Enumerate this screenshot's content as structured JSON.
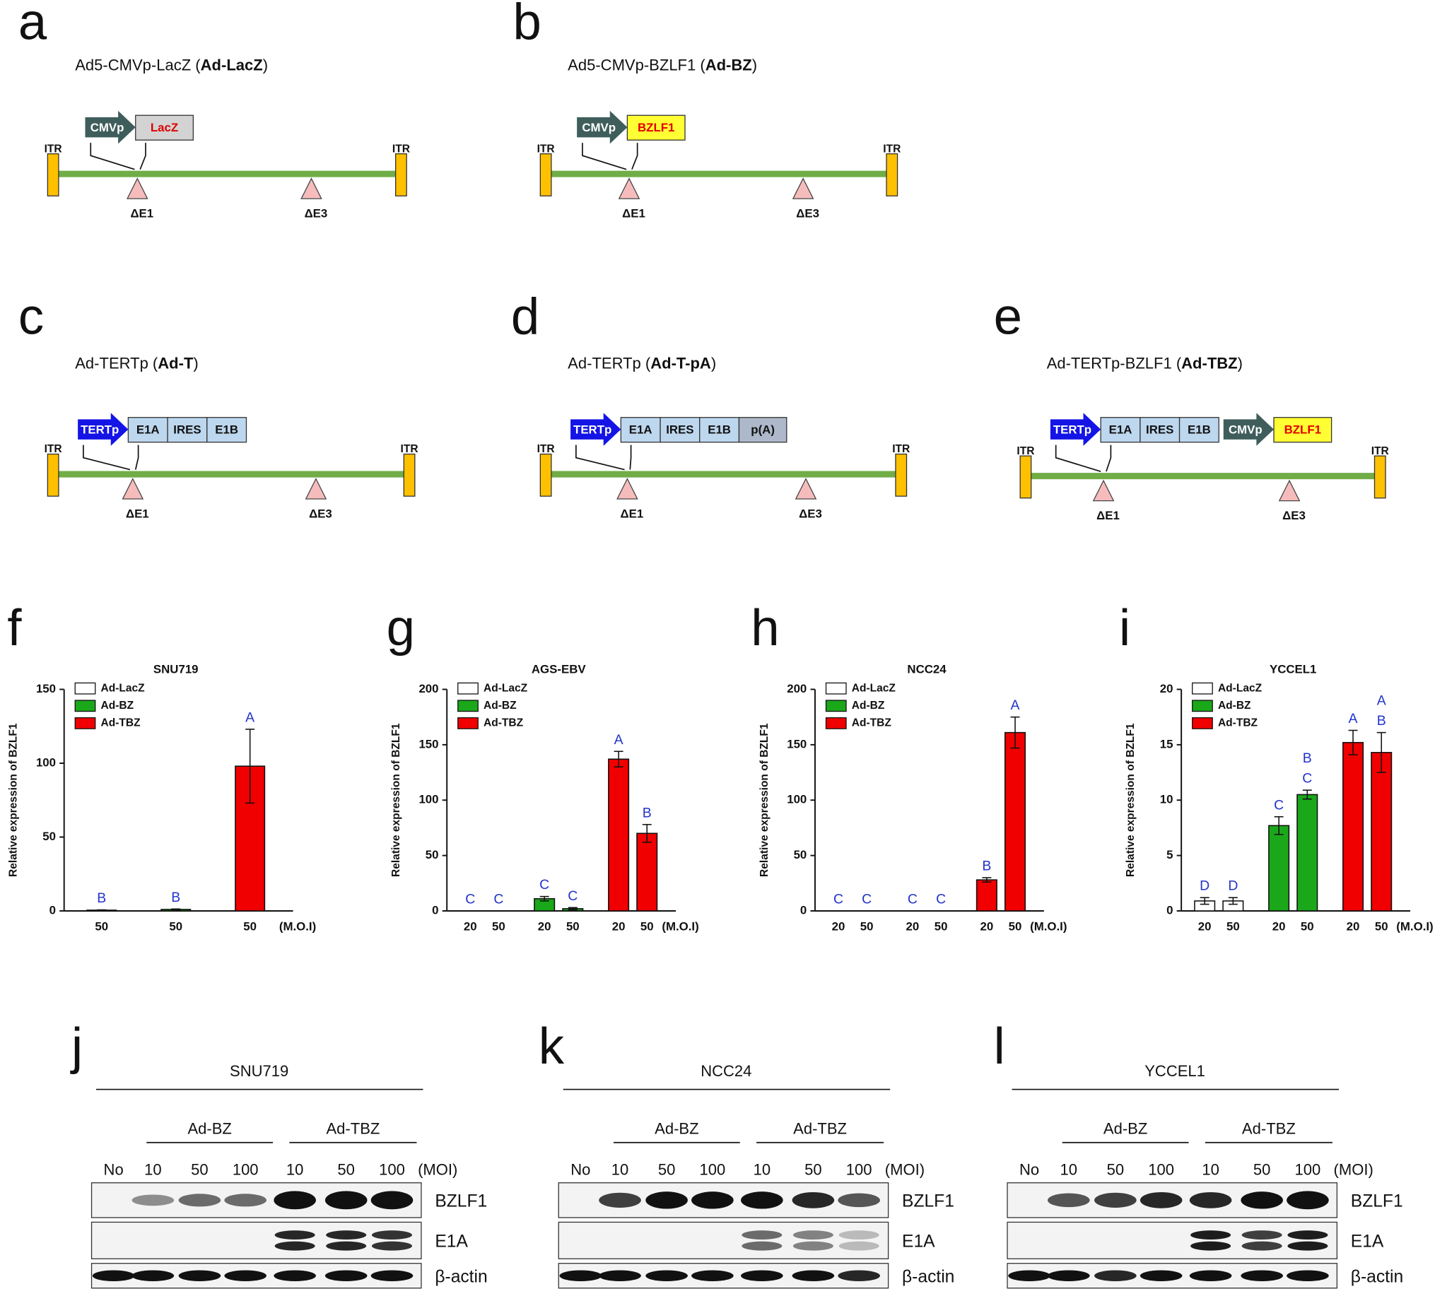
{
  "constructs": [
    {
      "letter": "a",
      "title": [
        "Ad5-CMVp-LacZ (",
        "Ad-LacZ",
        ")"
      ],
      "itr": [
        "ITR",
        "ITR"
      ],
      "cassette": [
        {
          "label": "CMVp",
          "kind": "promoter",
          "color": "#3f5e5b"
        },
        {
          "label": "LacZ",
          "kind": "gene",
          "color": "#d3d3d3"
        }
      ],
      "deletions": [
        "ΔE1",
        "ΔE3"
      ]
    },
    {
      "letter": "b",
      "title": [
        "Ad5-CMVp-BZLF1 (",
        "Ad-BZ",
        ")"
      ],
      "itr": [
        "ITR",
        "ITR"
      ],
      "cassette": [
        {
          "label": "CMVp",
          "kind": "promoter",
          "color": "#3f5e5b"
        },
        {
          "label": "BZLF1",
          "kind": "gene",
          "color": "#ffff33"
        }
      ],
      "deletions": [
        "ΔE1",
        "ΔE3"
      ]
    },
    {
      "letter": "c",
      "title": [
        "Ad-TERTp (",
        "Ad-T",
        ")"
      ],
      "itr": [
        "ITR",
        "ITR"
      ],
      "cassette": [
        {
          "label": "TERTp",
          "kind": "promoter",
          "color": "#1414e6"
        },
        {
          "label": "E1A",
          "kind": "segment",
          "color": "#bdd7ee"
        },
        {
          "label": "IRES",
          "kind": "segment",
          "color": "#bdd7ee"
        },
        {
          "label": "E1B",
          "kind": "segment",
          "color": "#bdd7ee"
        }
      ],
      "deletions": [
        "ΔE1",
        "ΔE3"
      ]
    },
    {
      "letter": "d",
      "title": [
        "Ad-TERTp (",
        "Ad-T-pA",
        ")"
      ],
      "itr": [
        "ITR",
        "ITR"
      ],
      "cassette": [
        {
          "label": "TERTp",
          "kind": "promoter",
          "color": "#1414e6"
        },
        {
          "label": "E1A",
          "kind": "segment",
          "color": "#bdd7ee"
        },
        {
          "label": "IRES",
          "kind": "segment",
          "color": "#bdd7ee"
        },
        {
          "label": "E1B",
          "kind": "segment",
          "color": "#bdd7ee"
        },
        {
          "label": "p(A)",
          "kind": "tail",
          "color": "#adb9ca"
        }
      ],
      "deletions": [
        "ΔE1",
        "ΔE3"
      ]
    },
    {
      "letter": "e",
      "title": [
        "Ad-TERTp-BZLF1 (",
        "Ad-TBZ",
        ")"
      ],
      "itr": [
        "ITR",
        "ITR"
      ],
      "cassette": [
        {
          "label": "TERTp",
          "kind": "promoter",
          "color": "#1414e6"
        },
        {
          "label": "E1A",
          "kind": "segment",
          "color": "#bdd7ee"
        },
        {
          "label": "IRES",
          "kind": "segment",
          "color": "#bdd7ee"
        },
        {
          "label": "E1B",
          "kind": "segment",
          "color": "#bdd7ee"
        },
        {
          "label": "CMVp",
          "kind": "promoter",
          "color": "#3f5e5b"
        },
        {
          "label": "BZLF1",
          "kind": "gene",
          "color": "#ffff33"
        }
      ],
      "deletions": [
        "ΔE1",
        "ΔE3"
      ]
    }
  ],
  "chart_data": [
    {
      "type": "bar",
      "letter": "f",
      "title": "SNU719",
      "y_label": "Relative expression of BZLF1",
      "x_label": "(M.O.I)",
      "ylim": [
        0,
        150
      ],
      "yticks": [
        0,
        50,
        100,
        150
      ],
      "series": [
        {
          "name": "Ad-LacZ",
          "color": "#ffffff",
          "categories": [
            "50"
          ],
          "values": [
            0.5
          ],
          "errors": [
            0.2
          ],
          "letters": [
            "B"
          ]
        },
        {
          "name": "Ad-BZ",
          "color": "#1aa81a",
          "categories": [
            "50"
          ],
          "values": [
            1
          ],
          "errors": [
            0.3
          ],
          "letters": [
            "B"
          ]
        },
        {
          "name": "Ad-TBZ",
          "color": "#f00000",
          "categories": [
            "50"
          ],
          "values": [
            98
          ],
          "errors": [
            25
          ],
          "letters": [
            "A"
          ]
        }
      ]
    },
    {
      "type": "bar",
      "letter": "g",
      "title": "AGS-EBV",
      "y_label": "Relative expression of BZLF1",
      "x_label": "(M.O.I)",
      "ylim": [
        0,
        200
      ],
      "yticks": [
        0,
        50,
        100,
        150,
        200
      ],
      "series": [
        {
          "name": "Ad-LacZ",
          "color": "#ffffff",
          "categories": [
            "20",
            "50"
          ],
          "values": [
            0,
            0
          ],
          "errors": [
            0,
            0
          ],
          "letters": [
            "C",
            "C"
          ]
        },
        {
          "name": "Ad-BZ",
          "color": "#1aa81a",
          "categories": [
            "20",
            "50"
          ],
          "values": [
            11,
            2
          ],
          "errors": [
            2,
            1
          ],
          "letters": [
            "C",
            "C"
          ]
        },
        {
          "name": "Ad-TBZ",
          "color": "#f00000",
          "categories": [
            "20",
            "50"
          ],
          "values": [
            137,
            70
          ],
          "errors": [
            7,
            8
          ],
          "letters": [
            "A",
            "B"
          ]
        }
      ]
    },
    {
      "type": "bar",
      "letter": "h",
      "title": "NCC24",
      "y_label": "Relative expression of BZLF1",
      "x_label": "(M.O.I)",
      "ylim": [
        0,
        200
      ],
      "yticks": [
        0,
        50,
        100,
        150,
        200
      ],
      "series": [
        {
          "name": "Ad-LacZ",
          "color": "#ffffff",
          "categories": [
            "20",
            "50"
          ],
          "values": [
            0,
            0
          ],
          "errors": [
            0,
            0
          ],
          "letters": [
            "C",
            "C"
          ]
        },
        {
          "name": "Ad-BZ",
          "color": "#1aa81a",
          "categories": [
            "20",
            "50"
          ],
          "values": [
            0,
            0
          ],
          "errors": [
            0,
            0
          ],
          "letters": [
            "C",
            "C"
          ]
        },
        {
          "name": "Ad-TBZ",
          "color": "#f00000",
          "categories": [
            "20",
            "50"
          ],
          "values": [
            28,
            161
          ],
          "errors": [
            2,
            14
          ],
          "letters": [
            "B",
            "A"
          ]
        }
      ]
    },
    {
      "type": "bar",
      "letter": "i",
      "title": "YCCEL1",
      "y_label": "Relative expression of BZLF1",
      "x_label": "(M.O.I)",
      "ylim": [
        0,
        20
      ],
      "yticks": [
        0,
        5,
        10,
        15,
        20
      ],
      "series": [
        {
          "name": "Ad-LacZ",
          "color": "#ffffff",
          "categories": [
            "20",
            "50"
          ],
          "values": [
            0.9,
            0.9
          ],
          "errors": [
            0.3,
            0.3
          ],
          "letters": [
            "D",
            "D"
          ]
        },
        {
          "name": "Ad-BZ",
          "color": "#1aa81a",
          "categories": [
            "20",
            "50"
          ],
          "values": [
            7.7,
            10.5
          ],
          "errors": [
            0.8,
            0.4
          ],
          "letters": [
            "C",
            [
              "B",
              "C"
            ]
          ]
        },
        {
          "name": "Ad-TBZ",
          "color": "#f00000",
          "categories": [
            "20",
            "50"
          ],
          "values": [
            15.2,
            14.3
          ],
          "errors": [
            1.1,
            1.8
          ],
          "letters": [
            "A",
            [
              "A",
              "B"
            ]
          ]
        }
      ]
    }
  ],
  "blots": [
    {
      "letter": "j",
      "title": "SNU719",
      "groups": [
        "Ad-BZ",
        "Ad-TBZ"
      ],
      "lanes": [
        "No",
        "10",
        "50",
        "100",
        "10",
        "50",
        "100"
      ],
      "unit": "(MOI)",
      "rows": [
        "BZLF1",
        "E1A",
        "β-actin"
      ]
    },
    {
      "letter": "k",
      "title": "NCC24",
      "groups": [
        "Ad-BZ",
        "Ad-TBZ"
      ],
      "lanes": [
        "No",
        "10",
        "50",
        "100",
        "10",
        "50",
        "100"
      ],
      "unit": "(MOI)",
      "rows": [
        "BZLF1",
        "E1A",
        "β-actin"
      ]
    },
    {
      "letter": "l",
      "title": "YCCEL1",
      "groups": [
        "Ad-BZ",
        "Ad-TBZ"
      ],
      "lanes": [
        "No",
        "10",
        "50",
        "100",
        "10",
        "50",
        "100"
      ],
      "unit": "(MOI)",
      "rows": [
        "BZLF1",
        "E1A",
        "β-actin"
      ]
    }
  ]
}
